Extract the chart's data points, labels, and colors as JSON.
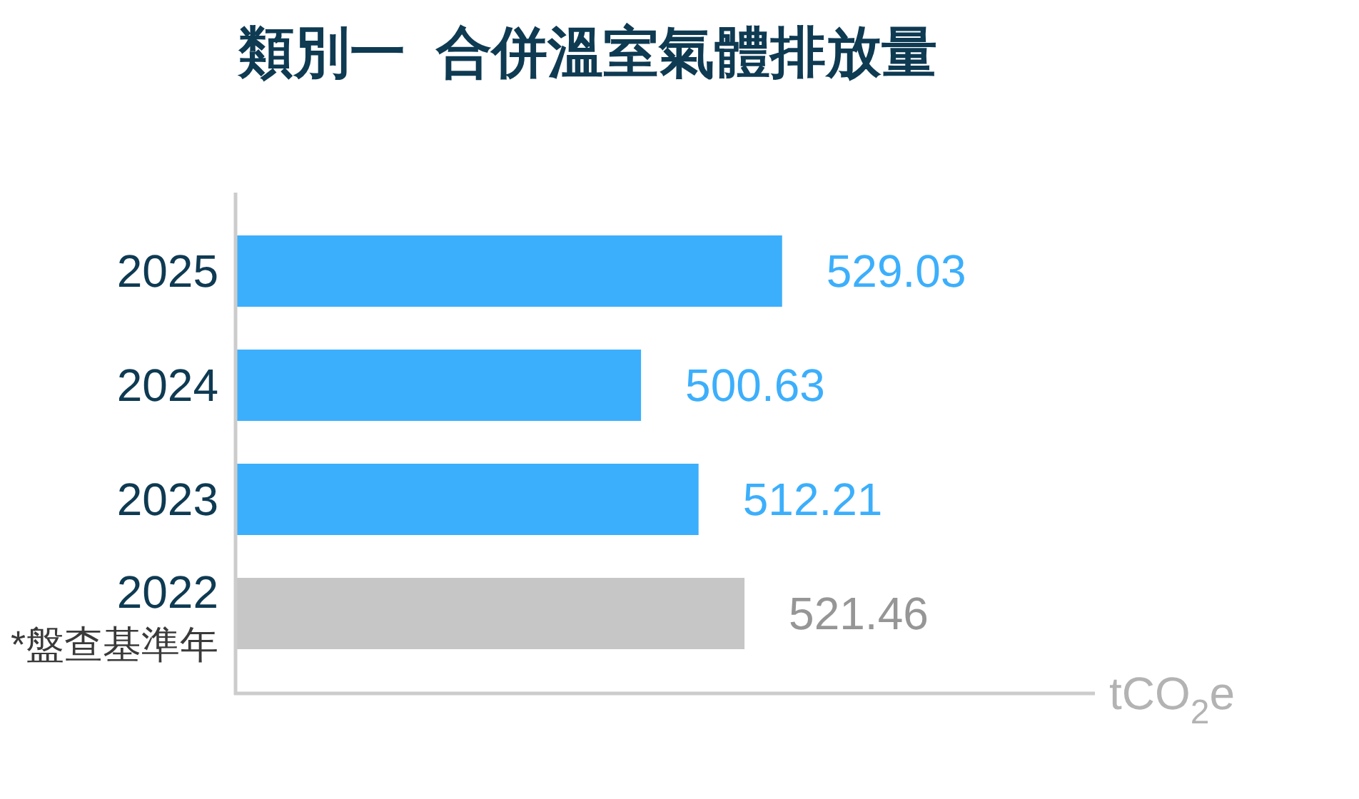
{
  "chart_data": {
    "type": "bar",
    "orientation": "horizontal",
    "title": "類別一  合併溫室氣體排放量",
    "xlabel": "tCO$_{2}$e",
    "categories": [
      "2025",
      "2024",
      "2023",
      "2022"
    ],
    "values": [
      529.03,
      500.63,
      512.21,
      521.46
    ],
    "colors": [
      "#3caffc",
      "#3caffc",
      "#3caffc",
      "#c6c6c6"
    ],
    "xlim": [
      419,
      592
    ],
    "data_labels": true,
    "tick_labels": "y",
    "annotations": [
      "*盤查基準年"
    ]
  }
}
